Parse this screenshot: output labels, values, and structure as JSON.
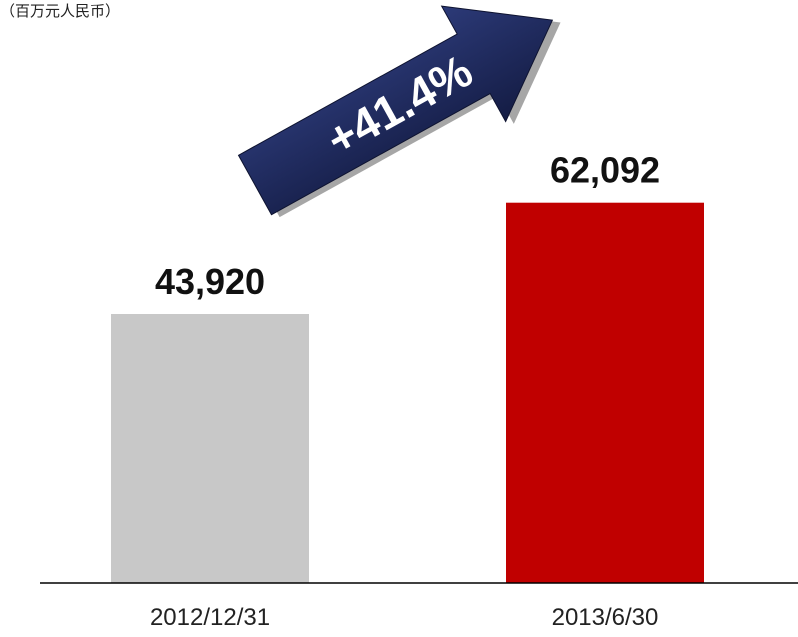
{
  "unit_label": "（百万元人民币）",
  "chart_data": {
    "type": "bar",
    "title": "",
    "xlabel": "",
    "ylabel": "",
    "categories": [
      "2012/12/31",
      "2013/6/30"
    ],
    "values": [
      43920,
      62092
    ],
    "value_labels": [
      "43,920",
      "62,092"
    ],
    "colors": [
      "#c8c8c8",
      "#c00000"
    ],
    "ylim": [
      0,
      80000
    ],
    "grid": false,
    "legend": "none",
    "annotations": [
      {
        "text": "+41.4%",
        "shape": "arrow-up-right",
        "color": "#1f2a5c"
      }
    ]
  }
}
